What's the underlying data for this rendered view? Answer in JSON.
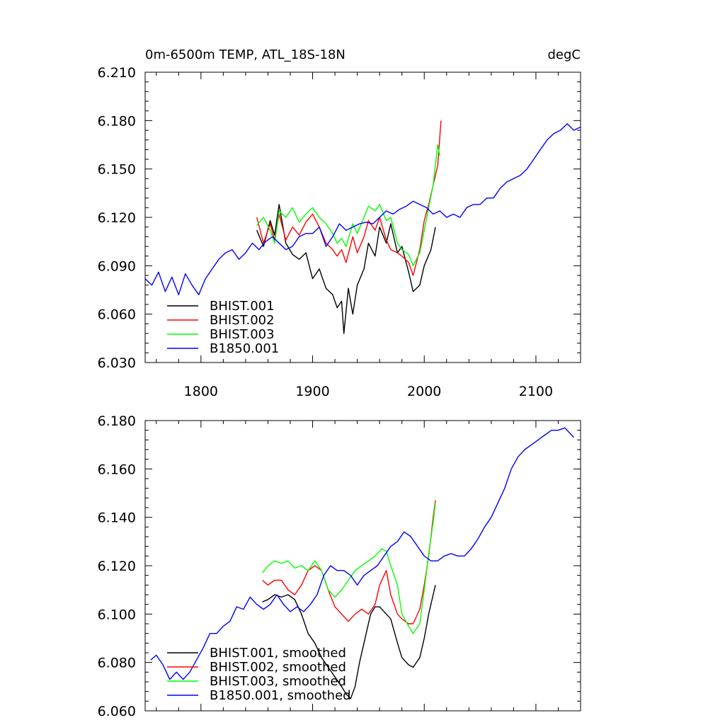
{
  "chart_data": [
    {
      "type": "line",
      "title": "0m-6500m TEMP, ATL_18S-18N",
      "units": "degC",
      "xlim": [
        1750,
        2140
      ],
      "ylim": [
        6.03,
        6.21
      ],
      "xticks": [
        1800,
        1900,
        2000,
        2100
      ],
      "xtick_labels": [
        "1800",
        "1900",
        "2000",
        "2100"
      ],
      "yticks": [
        6.03,
        6.06,
        6.09,
        6.12,
        6.15,
        6.18,
        6.21
      ],
      "ytick_labels": [
        "6.030",
        "6.060",
        "6.090",
        "6.120",
        "6.150",
        "6.180",
        "6.210"
      ],
      "legend_position": "bottom-left",
      "series": [
        {
          "name": "BHIST.001",
          "color": "#000000",
          "x": [
            1850,
            1856,
            1862,
            1866,
            1870,
            1876,
            1882,
            1888,
            1894,
            1900,
            1906,
            1912,
            1918,
            1922,
            1926,
            1928,
            1932,
            1936,
            1940,
            1946,
            1950,
            1956,
            1960,
            1966,
            1970,
            1976,
            1980,
            1986,
            1990,
            1996,
            2000,
            2006,
            2010
          ],
          "y": [
            6.112,
            6.102,
            6.118,
            6.109,
            6.128,
            6.104,
            6.097,
            6.094,
            6.098,
            6.082,
            6.088,
            6.076,
            6.072,
            6.064,
            6.068,
            6.048,
            6.076,
            6.06,
            6.078,
            6.088,
            6.104,
            6.096,
            6.114,
            6.104,
            6.116,
            6.098,
            6.102,
            6.086,
            6.074,
            6.078,
            6.09,
            6.1,
            6.114
          ]
        },
        {
          "name": "BHIST.002",
          "color": "#ff0000",
          "x": [
            1850,
            1856,
            1862,
            1866,
            1870,
            1876,
            1882,
            1888,
            1894,
            1900,
            1906,
            1912,
            1918,
            1922,
            1926,
            1930,
            1936,
            1940,
            1946,
            1950,
            1956,
            1960,
            1966,
            1970,
            1976,
            1980,
            1986,
            1990,
            1996,
            2000,
            2004,
            2008,
            2012,
            2015
          ],
          "y": [
            6.12,
            6.104,
            6.116,
            6.106,
            6.122,
            6.106,
            6.114,
            6.109,
            6.117,
            6.122,
            6.114,
            6.104,
            6.1,
            6.096,
            6.1,
            6.092,
            6.108,
            6.098,
            6.108,
            6.118,
            6.112,
            6.12,
            6.106,
            6.1,
            6.098,
            6.096,
            6.092,
            6.084,
            6.1,
            6.118,
            6.128,
            6.14,
            6.152,
            6.18
          ]
        },
        {
          "name": "BHIST.003",
          "color": "#00ff00",
          "x": [
            1850,
            1856,
            1862,
            1866,
            1870,
            1876,
            1882,
            1888,
            1894,
            1900,
            1906,
            1912,
            1918,
            1922,
            1926,
            1930,
            1936,
            1940,
            1946,
            1950,
            1956,
            1960,
            1966,
            1970,
            1976,
            1980,
            1986,
            1990,
            1996,
            2000,
            2004,
            2008,
            2012,
            2014
          ],
          "y": [
            6.115,
            6.12,
            6.112,
            6.104,
            6.124,
            6.12,
            6.126,
            6.117,
            6.122,
            6.126,
            6.12,
            6.116,
            6.11,
            6.104,
            6.107,
            6.102,
            6.116,
            6.11,
            6.12,
            6.127,
            6.124,
            6.128,
            6.118,
            6.12,
            6.104,
            6.1,
            6.097,
            6.09,
            6.098,
            6.112,
            6.126,
            6.14,
            6.165,
            6.158
          ]
        },
        {
          "name": "B1850.001",
          "color": "#0000ff",
          "x": [
            1750,
            1756,
            1762,
            1768,
            1774,
            1780,
            1786,
            1792,
            1798,
            1804,
            1810,
            1816,
            1822,
            1828,
            1834,
            1840,
            1846,
            1852,
            1858,
            1864,
            1870,
            1876,
            1882,
            1888,
            1894,
            1900,
            1906,
            1912,
            1918,
            1924,
            1930,
            1936,
            1942,
            1948,
            1954,
            1960,
            1966,
            1972,
            1978,
            1984,
            1990,
            1996,
            2002,
            2008,
            2014,
            2020,
            2026,
            2032,
            2038,
            2044,
            2050,
            2056,
            2062,
            2068,
            2074,
            2080,
            2086,
            2092,
            2098,
            2104,
            2110,
            2116,
            2122,
            2128,
            2134,
            2140
          ],
          "y": [
            6.082,
            6.078,
            6.086,
            6.074,
            6.083,
            6.072,
            6.085,
            6.078,
            6.072,
            6.082,
            6.088,
            6.094,
            6.098,
            6.1,
            6.094,
            6.098,
            6.104,
            6.1,
            6.105,
            6.108,
            6.104,
            6.1,
            6.102,
            6.108,
            6.11,
            6.11,
            6.114,
            6.102,
            6.108,
            6.116,
            6.112,
            6.114,
            6.116,
            6.117,
            6.116,
            6.12,
            6.124,
            6.122,
            6.125,
            6.127,
            6.13,
            6.128,
            6.126,
            6.122,
            6.124,
            6.12,
            6.122,
            6.12,
            6.126,
            6.128,
            6.128,
            6.132,
            6.132,
            6.138,
            6.142,
            6.144,
            6.146,
            6.15,
            6.156,
            6.162,
            6.168,
            6.172,
            6.174,
            6.178,
            6.174,
            6.176
          ]
        }
      ]
    },
    {
      "type": "line",
      "title": "",
      "xlim": [
        1750,
        2140
      ],
      "ylim": [
        6.06,
        6.18
      ],
      "xticks": [
        1800,
        1900,
        2000,
        2100
      ],
      "yticks": [
        6.06,
        6.08,
        6.1,
        6.12,
        6.14,
        6.16,
        6.18
      ],
      "ytick_labels": [
        "6.060",
        "6.080",
        "6.100",
        "6.120",
        "6.140",
        "6.160",
        "6.180"
      ],
      "legend_position": "bottom-left",
      "series": [
        {
          "name": "BHIST.001, smoothed",
          "color": "#000000",
          "x": [
            1855,
            1860,
            1866,
            1872,
            1878,
            1884,
            1890,
            1896,
            1902,
            1908,
            1914,
            1920,
            1926,
            1930,
            1934,
            1938,
            1942,
            1948,
            1952,
            1956,
            1960,
            1966,
            1970,
            1976,
            1980,
            1986,
            1990,
            1996,
            2000,
            2004,
            2008,
            2010
          ],
          "y": [
            6.105,
            6.106,
            6.108,
            6.107,
            6.108,
            6.106,
            6.1,
            6.092,
            6.088,
            6.082,
            6.078,
            6.074,
            6.07,
            6.067,
            6.065,
            6.07,
            6.08,
            6.092,
            6.1,
            6.103,
            6.103,
            6.1,
            6.098,
            6.088,
            6.082,
            6.079,
            6.078,
            6.082,
            6.09,
            6.1,
            6.108,
            6.112
          ]
        },
        {
          "name": "BHIST.002, smoothed",
          "color": "#ff0000",
          "x": [
            1855,
            1860,
            1866,
            1872,
            1878,
            1884,
            1890,
            1896,
            1902,
            1908,
            1914,
            1920,
            1926,
            1932,
            1938,
            1944,
            1950,
            1956,
            1960,
            1966,
            1970,
            1976,
            1980,
            1986,
            1990,
            1996,
            2000,
            2004,
            2008,
            2010
          ],
          "y": [
            6.114,
            6.112,
            6.114,
            6.114,
            6.11,
            6.108,
            6.112,
            6.118,
            6.12,
            6.118,
            6.11,
            6.103,
            6.1,
            6.097,
            6.1,
            6.102,
            6.1,
            6.104,
            6.112,
            6.118,
            6.108,
            6.1,
            6.098,
            6.096,
            6.096,
            6.102,
            6.112,
            6.124,
            6.14,
            6.147
          ]
        },
        {
          "name": "BHIST.003, smoothed",
          "color": "#00ff00",
          "x": [
            1855,
            1860,
            1866,
            1872,
            1878,
            1884,
            1890,
            1896,
            1902,
            1908,
            1914,
            1920,
            1926,
            1932,
            1938,
            1944,
            1950,
            1956,
            1962,
            1966,
            1970,
            1976,
            1980,
            1986,
            1990,
            1996,
            2000,
            2004,
            2008,
            2010
          ],
          "y": [
            6.117,
            6.12,
            6.122,
            6.121,
            6.122,
            6.119,
            6.12,
            6.118,
            6.122,
            6.118,
            6.11,
            6.107,
            6.11,
            6.114,
            6.118,
            6.12,
            6.122,
            6.124,
            6.127,
            6.126,
            6.12,
            6.112,
            6.1,
            6.095,
            6.092,
            6.096,
            6.11,
            6.125,
            6.138,
            6.146
          ]
        },
        {
          "name": "B1850.001, smoothed",
          "color": "#0000ff",
          "x": [
            1755,
            1760,
            1766,
            1772,
            1778,
            1784,
            1790,
            1796,
            1802,
            1808,
            1814,
            1820,
            1826,
            1832,
            1838,
            1844,
            1850,
            1856,
            1862,
            1868,
            1874,
            1880,
            1886,
            1892,
            1898,
            1904,
            1910,
            1916,
            1922,
            1928,
            1934,
            1940,
            1946,
            1952,
            1958,
            1964,
            1970,
            1976,
            1982,
            1988,
            1994,
            2000,
            2006,
            2012,
            2018,
            2024,
            2030,
            2036,
            2042,
            2048,
            2054,
            2060,
            2066,
            2072,
            2078,
            2084,
            2090,
            2096,
            2102,
            2108,
            2114,
            2120,
            2126,
            2130,
            2134
          ],
          "y": [
            6.081,
            6.083,
            6.079,
            6.073,
            6.076,
            6.073,
            6.076,
            6.081,
            6.086,
            6.092,
            6.092,
            6.095,
            6.097,
            6.103,
            6.102,
            6.107,
            6.104,
            6.102,
            6.104,
            6.108,
            6.104,
            6.101,
            6.103,
            6.101,
            6.104,
            6.108,
            6.116,
            6.12,
            6.118,
            6.118,
            6.116,
            6.112,
            6.116,
            6.118,
            6.12,
            6.124,
            6.128,
            6.13,
            6.134,
            6.132,
            6.128,
            6.124,
            6.122,
            6.122,
            6.124,
            6.125,
            6.124,
            6.124,
            6.127,
            6.131,
            6.136,
            6.14,
            6.146,
            6.152,
            6.16,
            6.165,
            6.168,
            6.17,
            6.172,
            6.174,
            6.176,
            6.176,
            6.177,
            6.175,
            6.173
          ]
        }
      ]
    }
  ]
}
